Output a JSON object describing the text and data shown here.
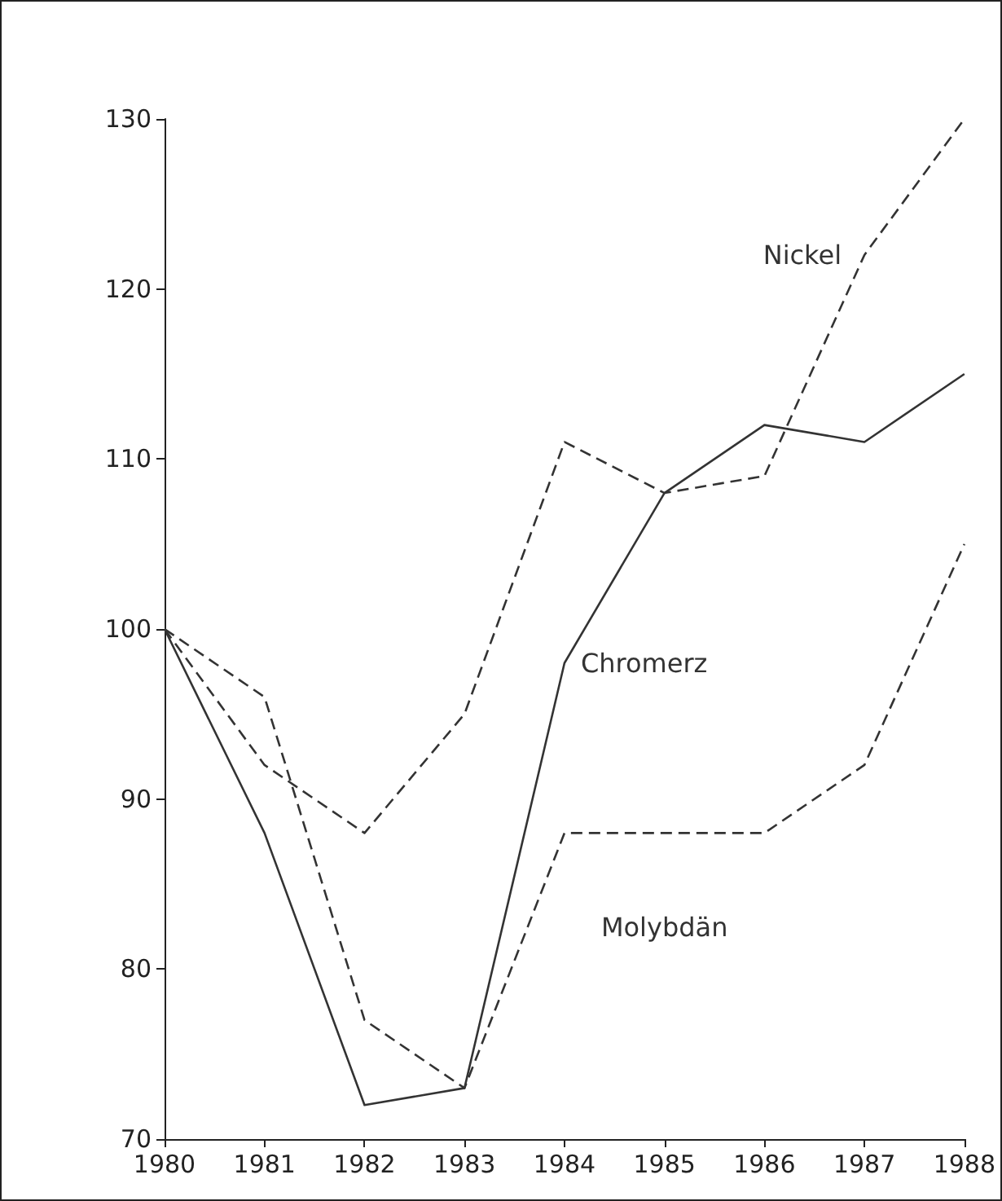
{
  "chart_data": {
    "type": "line",
    "x": [
      1980,
      1981,
      1982,
      1983,
      1984,
      1985,
      1986,
      1987,
      1988
    ],
    "xlim": [
      1980,
      1988
    ],
    "xticks": [
      1980,
      1981,
      1982,
      1983,
      1984,
      1985,
      1986,
      1987,
      1988
    ],
    "ylim": [
      70,
      130
    ],
    "yticks": [
      70,
      80,
      90,
      100,
      110,
      120,
      130
    ],
    "grid": false,
    "legend": false,
    "marker": "none",
    "series": [
      {
        "name": "Nickel",
        "color": "#333333",
        "line_style": "dashed",
        "values": [
          100,
          92,
          88,
          95,
          111,
          108,
          109,
          122,
          130
        ]
      },
      {
        "name": "Chromerz",
        "color": "#333333",
        "line_style": "solid",
        "values": [
          100,
          88,
          72,
          73,
          98,
          108,
          112,
          111,
          115
        ]
      },
      {
        "name": "Molybdän",
        "color": "#333333",
        "line_style": "dashed",
        "values": [
          100,
          96,
          77,
          73,
          88,
          88,
          88,
          92,
          105
        ]
      }
    ]
  }
}
